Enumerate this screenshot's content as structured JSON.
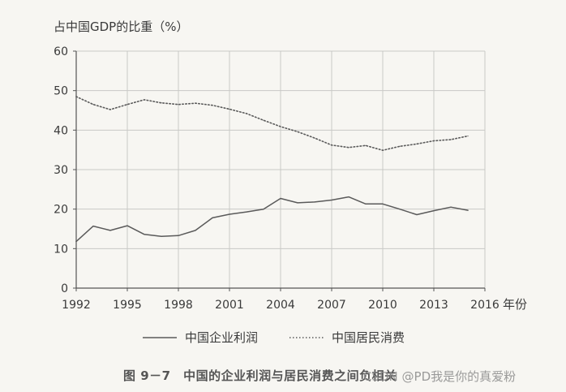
{
  "chart_data": {
    "type": "line",
    "ylabel": "占中国GDP的比重（%）",
    "xunit": "年份",
    "ylim": [
      0,
      60
    ],
    "yticks": [
      0,
      10,
      20,
      30,
      40,
      50,
      60
    ],
    "xlim": [
      1992,
      2016
    ],
    "xticks": [
      1992,
      1995,
      1998,
      2001,
      2004,
      2007,
      2010,
      2013,
      2016
    ],
    "grid": true,
    "legend_position": "bottom",
    "series": [
      {
        "name": "中国企业利润",
        "style": "solid",
        "color": "#5a5a5a",
        "x": [
          1992,
          1993,
          1994,
          1995,
          1996,
          1997,
          1998,
          1999,
          2000,
          2001,
          2002,
          2003,
          2004,
          2005,
          2006,
          2007,
          2008,
          2009,
          2010,
          2011,
          2012,
          2013,
          2014,
          2015
        ],
        "values": [
          11.8,
          15.7,
          14.6,
          15.8,
          13.6,
          13.1,
          13.3,
          14.6,
          17.8,
          18.7,
          19.3,
          20.0,
          22.7,
          21.6,
          21.8,
          22.3,
          23.1,
          21.3,
          21.3,
          20.0,
          18.6,
          19.6,
          20.5,
          19.7
        ]
      },
      {
        "name": "中国居民消费",
        "style": "dotted",
        "color": "#5a5a5a",
        "x": [
          1992,
          1993,
          1994,
          1995,
          1996,
          1997,
          1998,
          1999,
          2000,
          2001,
          2002,
          2003,
          2004,
          2005,
          2006,
          2007,
          2008,
          2009,
          2010,
          2011,
          2012,
          2013,
          2014,
          2015
        ],
        "values": [
          48.5,
          46.5,
          45.2,
          46.5,
          47.7,
          46.9,
          46.5,
          46.8,
          46.3,
          45.3,
          44.2,
          42.5,
          40.9,
          39.6,
          38.0,
          36.2,
          35.6,
          36.1,
          34.9,
          35.9,
          36.5,
          37.3,
          37.6,
          38.5
        ]
      }
    ]
  },
  "caption": "图 9－7　中国的企业利润与居民消费之间负相关",
  "watermark": "CSDN @PD我是你的真爱粉"
}
